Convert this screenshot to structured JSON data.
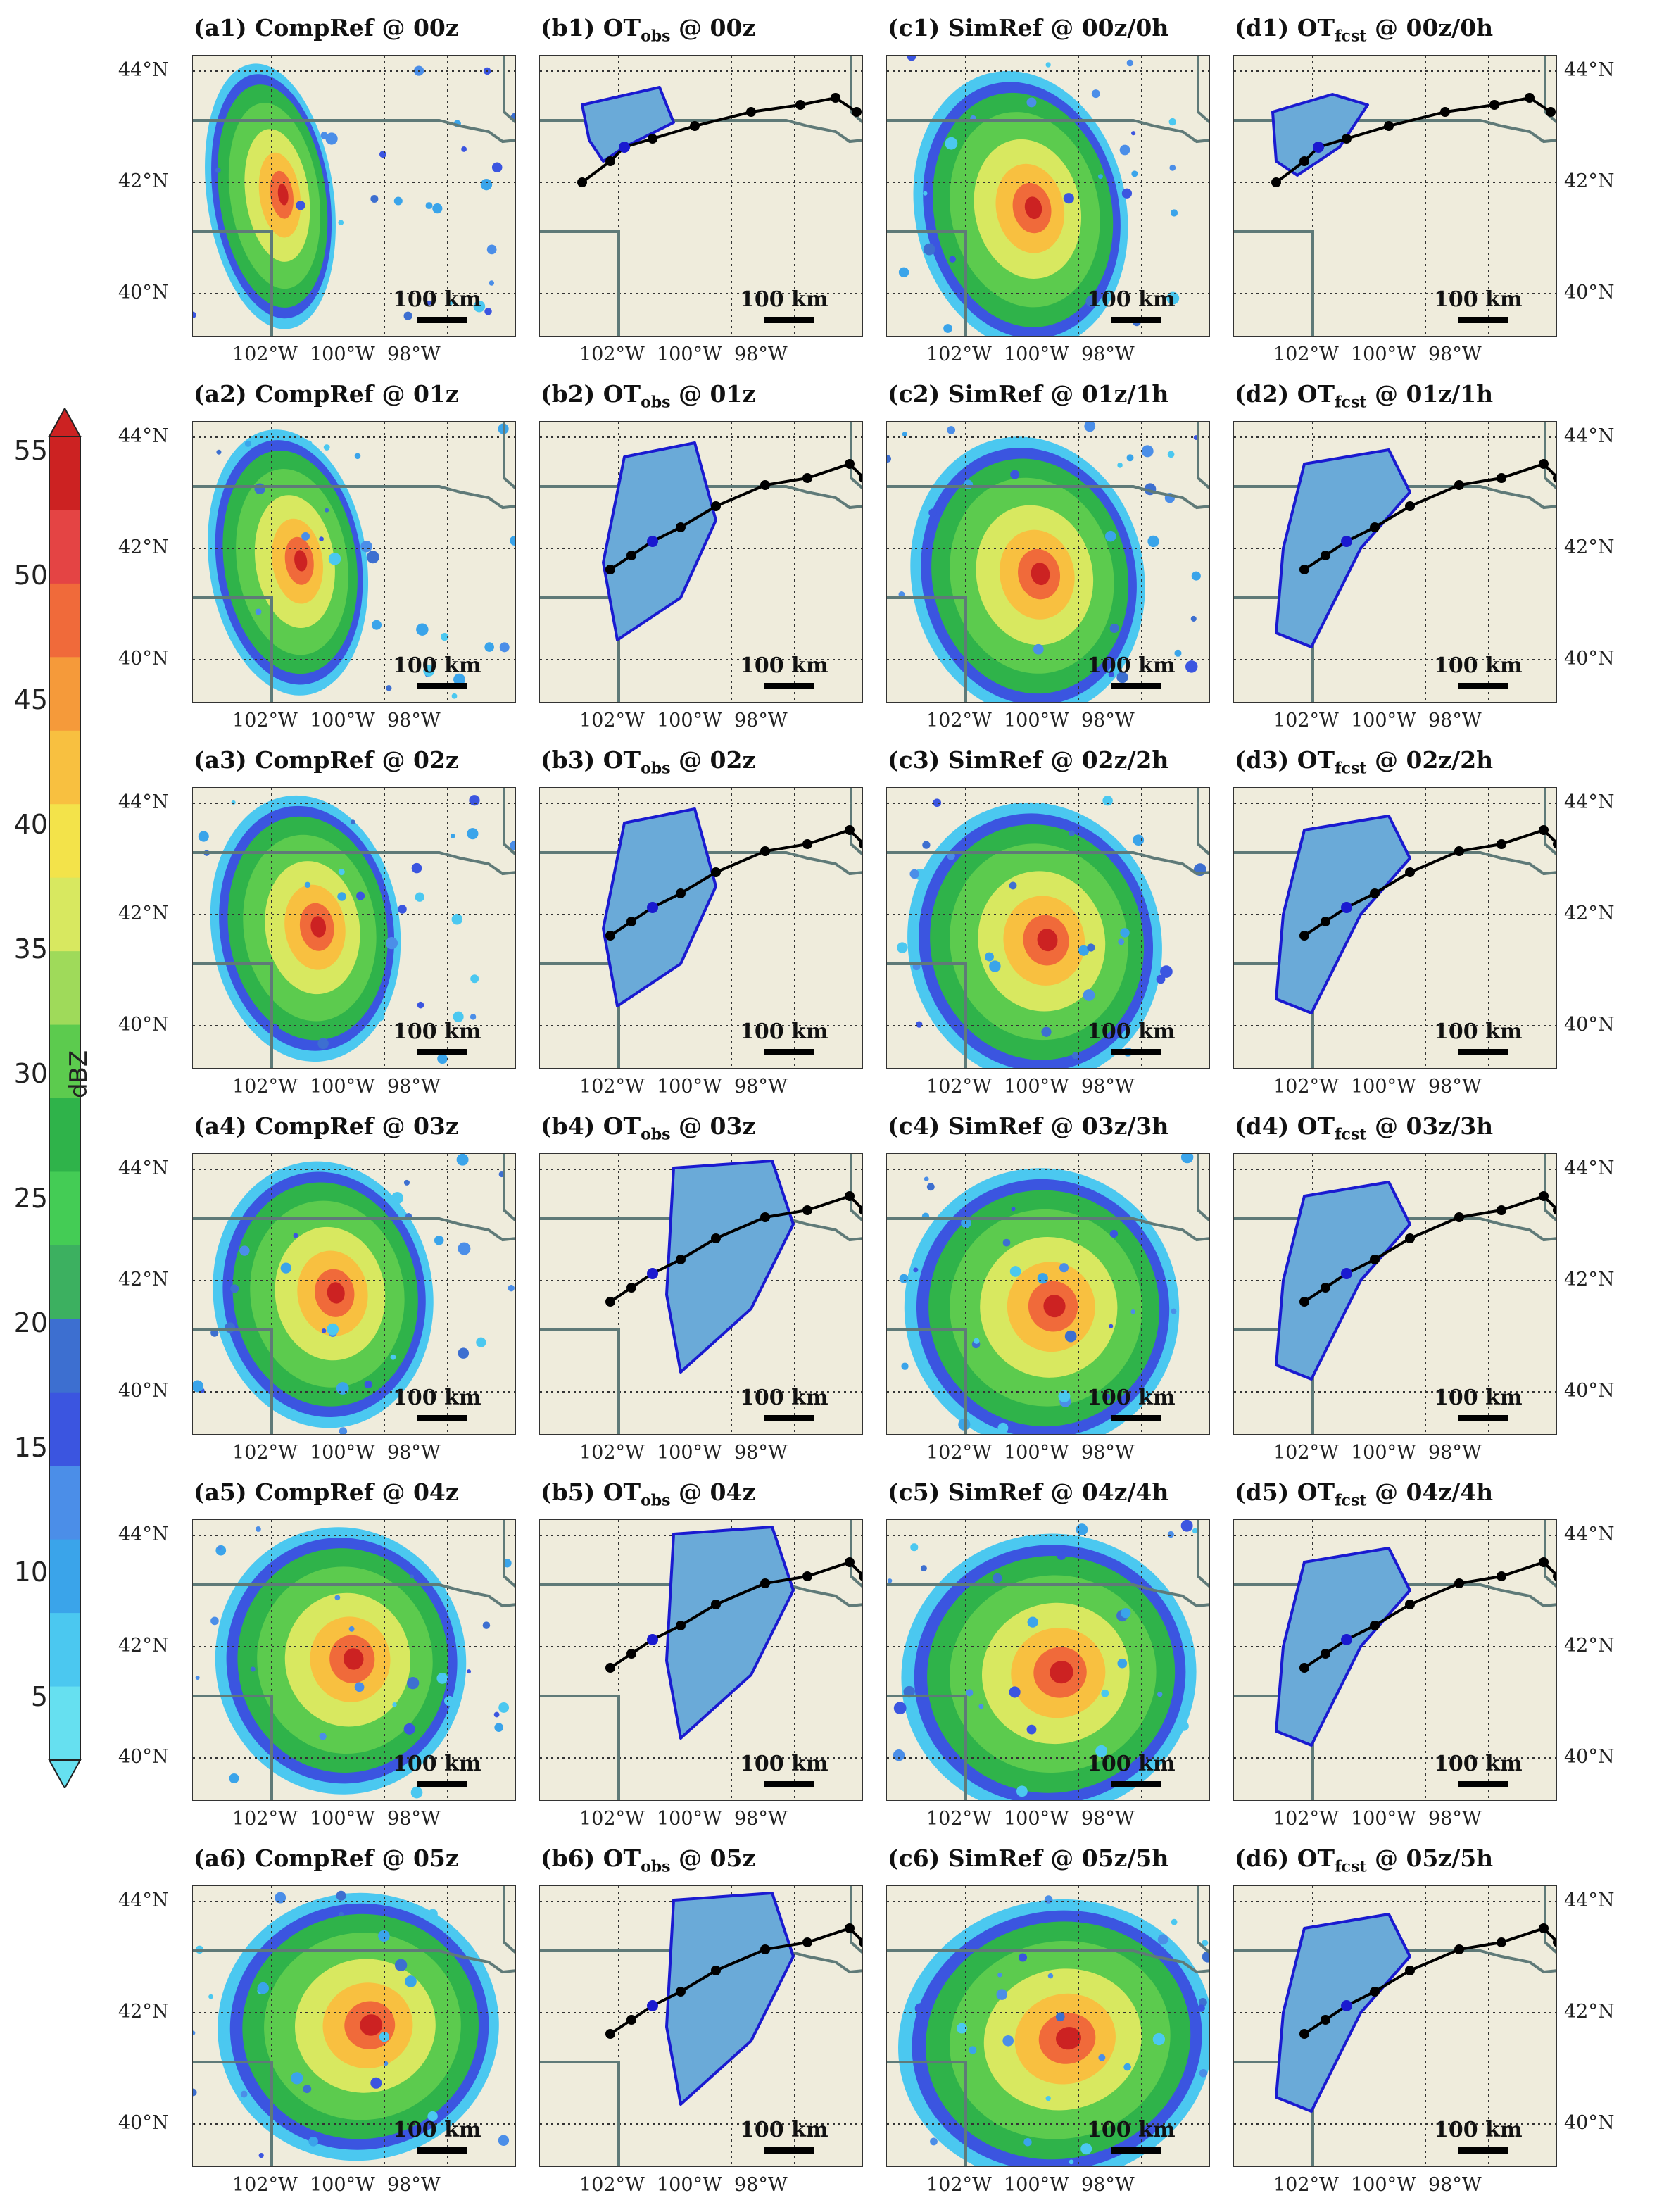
{
  "colorbar": {
    "label": "dBZ",
    "ticks": [
      "55",
      "50",
      "45",
      "40",
      "35",
      "30",
      "25",
      "20",
      "15",
      "10",
      "5"
    ],
    "colors": [
      "#cc2222",
      "#e44444",
      "#f06a3a",
      "#f59a3a",
      "#f8c040",
      "#f3e34a",
      "#d8e860",
      "#9fda5a",
      "#5ccb4e",
      "#2fb34a",
      "#44cc55",
      "#3cb060",
      "#3d6fd0",
      "#3b55e0",
      "#4b8ee8",
      "#3aa4ea",
      "#4bc8f0",
      "#66e0f0"
    ]
  },
  "labels": {
    "lat": [
      "44°N",
      "42°N",
      "40°N"
    ],
    "lon": [
      "102°W",
      "100°W",
      "98°W"
    ],
    "scale": "100 km"
  },
  "rows": [
    {
      "titles": [
        {
          "id": "(a1)",
          "main": "CompRef",
          "sub": "",
          "rest": "@ 00z"
        },
        {
          "id": "(b1)",
          "main": "OT",
          "sub": "obs",
          "rest": "@ 00z"
        },
        {
          "id": "(c1)",
          "main": "SimRef",
          "sub": "",
          "rest": "@ 00z/0h"
        },
        {
          "id": "(d1)",
          "main": "OT",
          "sub": "fcst",
          "rest": "@ 00z/0h"
        }
      ]
    },
    {
      "titles": [
        {
          "id": "(a2)",
          "main": "CompRef",
          "sub": "",
          "rest": "@ 01z"
        },
        {
          "id": "(b2)",
          "main": "OT",
          "sub": "obs",
          "rest": "@ 01z"
        },
        {
          "id": "(c2)",
          "main": "SimRef",
          "sub": "",
          "rest": "@ 01z/1h"
        },
        {
          "id": "(d2)",
          "main": "OT",
          "sub": "fcst",
          "rest": "@ 01z/1h"
        }
      ]
    },
    {
      "titles": [
        {
          "id": "(a3)",
          "main": "CompRef",
          "sub": "",
          "rest": "@ 02z"
        },
        {
          "id": "(b3)",
          "main": "OT",
          "sub": "obs",
          "rest": "@ 02z"
        },
        {
          "id": "(c3)",
          "main": "SimRef",
          "sub": "",
          "rest": "@ 02z/2h"
        },
        {
          "id": "(d3)",
          "main": "OT",
          "sub": "fcst",
          "rest": "@ 02z/2h"
        }
      ]
    },
    {
      "titles": [
        {
          "id": "(a4)",
          "main": "CompRef",
          "sub": "",
          "rest": "@ 03z"
        },
        {
          "id": "(b4)",
          "main": "OT",
          "sub": "obs",
          "rest": "@ 03z"
        },
        {
          "id": "(c4)",
          "main": "SimRef",
          "sub": "",
          "rest": "@ 03z/3h"
        },
        {
          "id": "(d4)",
          "main": "OT",
          "sub": "fcst",
          "rest": "@ 03z/3h"
        }
      ]
    },
    {
      "titles": [
        {
          "id": "(a5)",
          "main": "CompRef",
          "sub": "",
          "rest": "@ 04z"
        },
        {
          "id": "(b5)",
          "main": "OT",
          "sub": "obs",
          "rest": "@ 04z"
        },
        {
          "id": "(c5)",
          "main": "SimRef",
          "sub": "",
          "rest": "@ 04z/4h"
        },
        {
          "id": "(d5)",
          "main": "OT",
          "sub": "fcst",
          "rest": "@ 04z/4h"
        }
      ]
    },
    {
      "titles": [
        {
          "id": "(a6)",
          "main": "CompRef",
          "sub": "",
          "rest": "@ 05z"
        },
        {
          "id": "(b6)",
          "main": "OT",
          "sub": "obs",
          "rest": "@ 05z"
        },
        {
          "id": "(c6)",
          "main": "SimRef",
          "sub": "",
          "rest": "@ 05z/5h"
        },
        {
          "id": "(d6)",
          "main": "OT",
          "sub": "fcst",
          "rest": "@ 05z/5h"
        }
      ]
    }
  ],
  "style": {
    "map_background": "#efecdc",
    "gridline": "#333333",
    "state_border": "#5f7a78",
    "ot_outline": "#1a1ad0",
    "ot_fill": "#6aaad8",
    "track": "#000000"
  }
}
